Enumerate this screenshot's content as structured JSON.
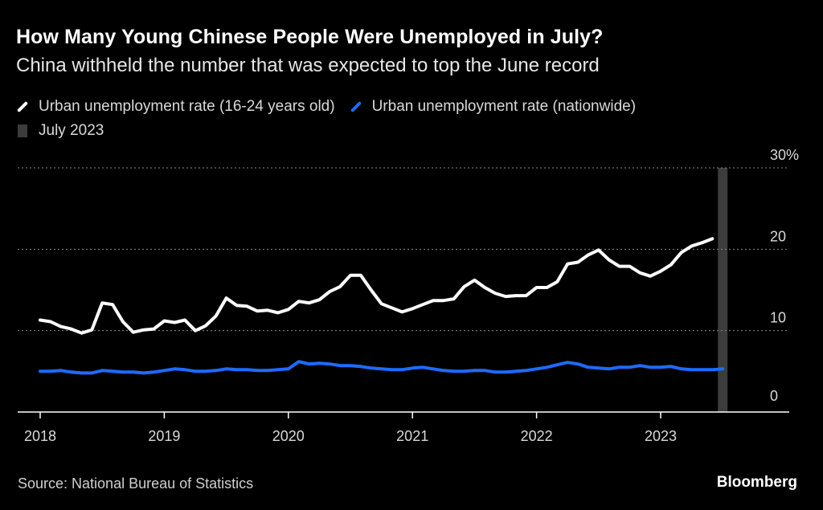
{
  "header": {
    "title": "How Many Young Chinese People Were Unemployed in July?",
    "subtitle": "China withheld the number that was expected to top the June record"
  },
  "legend": {
    "youth_label": "Urban unemployment rate (16-24 years old)",
    "national_label": "Urban unemployment rate (nationwide)",
    "highlight_label": "July 2023"
  },
  "footer": {
    "source": "Source: National Bureau of Statistics",
    "brand": "Bloomberg"
  },
  "colors": {
    "background": "#000000",
    "youth": "#ffffff",
    "national": "#1e6bff",
    "highlight": "#3c3c3c",
    "grid": "#8a8a8a"
  },
  "chart_data": {
    "type": "line",
    "title": "How Many Young Chinese People Were Unemployed in July?",
    "xlabel": "",
    "ylabel": "",
    "ylim": [
      0,
      30
    ],
    "y_ticks": [
      0,
      10,
      20,
      30
    ],
    "y_tick_labels": [
      "0",
      "10",
      "20",
      "30%"
    ],
    "x_ticks": [
      2018,
      2019,
      2020,
      2021,
      2022,
      2023
    ],
    "x_tick_labels": [
      "2018",
      "2019",
      "2020",
      "2021",
      "2022",
      "2023"
    ],
    "highlight": {
      "label": "July 2023",
      "x": 2023.5
    },
    "series": [
      {
        "name": "Urban unemployment rate (16-24 years old)",
        "x": [
          2018.0,
          2018.0833,
          2018.1667,
          2018.25,
          2018.3333,
          2018.4167,
          2018.5,
          2018.5833,
          2018.6667,
          2018.75,
          2018.8333,
          2018.9167,
          2019.0,
          2019.0833,
          2019.1667,
          2019.25,
          2019.3333,
          2019.4167,
          2019.5,
          2019.5833,
          2019.6667,
          2019.75,
          2019.8333,
          2019.9167,
          2020.0,
          2020.0833,
          2020.1667,
          2020.25,
          2020.3333,
          2020.4167,
          2020.5,
          2020.5833,
          2020.6667,
          2020.75,
          2020.8333,
          2020.9167,
          2021.0,
          2021.0833,
          2021.1667,
          2021.25,
          2021.3333,
          2021.4167,
          2021.5,
          2021.5833,
          2021.6667,
          2021.75,
          2021.8333,
          2021.9167,
          2022.0,
          2022.0833,
          2022.1667,
          2022.25,
          2022.3333,
          2022.4167,
          2022.5,
          2022.5833,
          2022.6667,
          2022.75,
          2022.8333,
          2022.9167,
          2023.0,
          2023.0833,
          2023.1667,
          2023.25,
          2023.3333,
          2023.4167
        ],
        "values": [
          11.3,
          11.1,
          10.5,
          10.2,
          9.7,
          10.1,
          13.4,
          13.2,
          11.1,
          9.8,
          10.1,
          10.2,
          11.2,
          11.0,
          11.3,
          10.0,
          10.6,
          11.8,
          14.0,
          13.1,
          13.0,
          12.4,
          12.5,
          12.2,
          12.6,
          13.6,
          13.4,
          13.8,
          14.8,
          15.4,
          16.8,
          16.8,
          15.0,
          13.3,
          12.8,
          12.3,
          12.7,
          13.2,
          13.7,
          13.7,
          13.9,
          15.4,
          16.2,
          15.3,
          14.6,
          14.2,
          14.3,
          14.3,
          15.3,
          15.3,
          16.0,
          18.2,
          18.4,
          19.3,
          19.9,
          18.7,
          17.9,
          17.9,
          17.1,
          16.7,
          17.3,
          18.1,
          19.6,
          20.4,
          20.8,
          21.3
        ]
      },
      {
        "name": "Urban unemployment rate (nationwide)",
        "x": [
          2018.0,
          2018.0833,
          2018.1667,
          2018.25,
          2018.3333,
          2018.4167,
          2018.5,
          2018.5833,
          2018.6667,
          2018.75,
          2018.8333,
          2018.9167,
          2019.0,
          2019.0833,
          2019.1667,
          2019.25,
          2019.3333,
          2019.4167,
          2019.5,
          2019.5833,
          2019.6667,
          2019.75,
          2019.8333,
          2019.9167,
          2020.0,
          2020.0833,
          2020.1667,
          2020.25,
          2020.3333,
          2020.4167,
          2020.5,
          2020.5833,
          2020.6667,
          2020.75,
          2020.8333,
          2020.9167,
          2021.0,
          2021.0833,
          2021.1667,
          2021.25,
          2021.3333,
          2021.4167,
          2021.5,
          2021.5833,
          2021.6667,
          2021.75,
          2021.8333,
          2021.9167,
          2022.0,
          2022.0833,
          2022.1667,
          2022.25,
          2022.3333,
          2022.4167,
          2022.5,
          2022.5833,
          2022.6667,
          2022.75,
          2022.8333,
          2022.9167,
          2023.0,
          2023.0833,
          2023.1667,
          2023.25,
          2023.3333,
          2023.4167,
          2023.5
        ],
        "values": [
          5.0,
          5.0,
          5.1,
          4.9,
          4.8,
          4.8,
          5.1,
          5.0,
          4.9,
          4.9,
          4.8,
          4.9,
          5.1,
          5.3,
          5.2,
          5.0,
          5.0,
          5.1,
          5.3,
          5.2,
          5.2,
          5.1,
          5.1,
          5.2,
          5.3,
          6.2,
          5.9,
          6.0,
          5.9,
          5.7,
          5.7,
          5.6,
          5.4,
          5.3,
          5.2,
          5.2,
          5.4,
          5.5,
          5.3,
          5.1,
          5.0,
          5.0,
          5.1,
          5.1,
          4.9,
          4.9,
          5.0,
          5.1,
          5.3,
          5.5,
          5.8,
          6.1,
          5.9,
          5.5,
          5.4,
          5.3,
          5.5,
          5.5,
          5.7,
          5.5,
          5.5,
          5.6,
          5.3,
          5.2,
          5.2,
          5.2,
          5.3
        ]
      }
    ]
  }
}
